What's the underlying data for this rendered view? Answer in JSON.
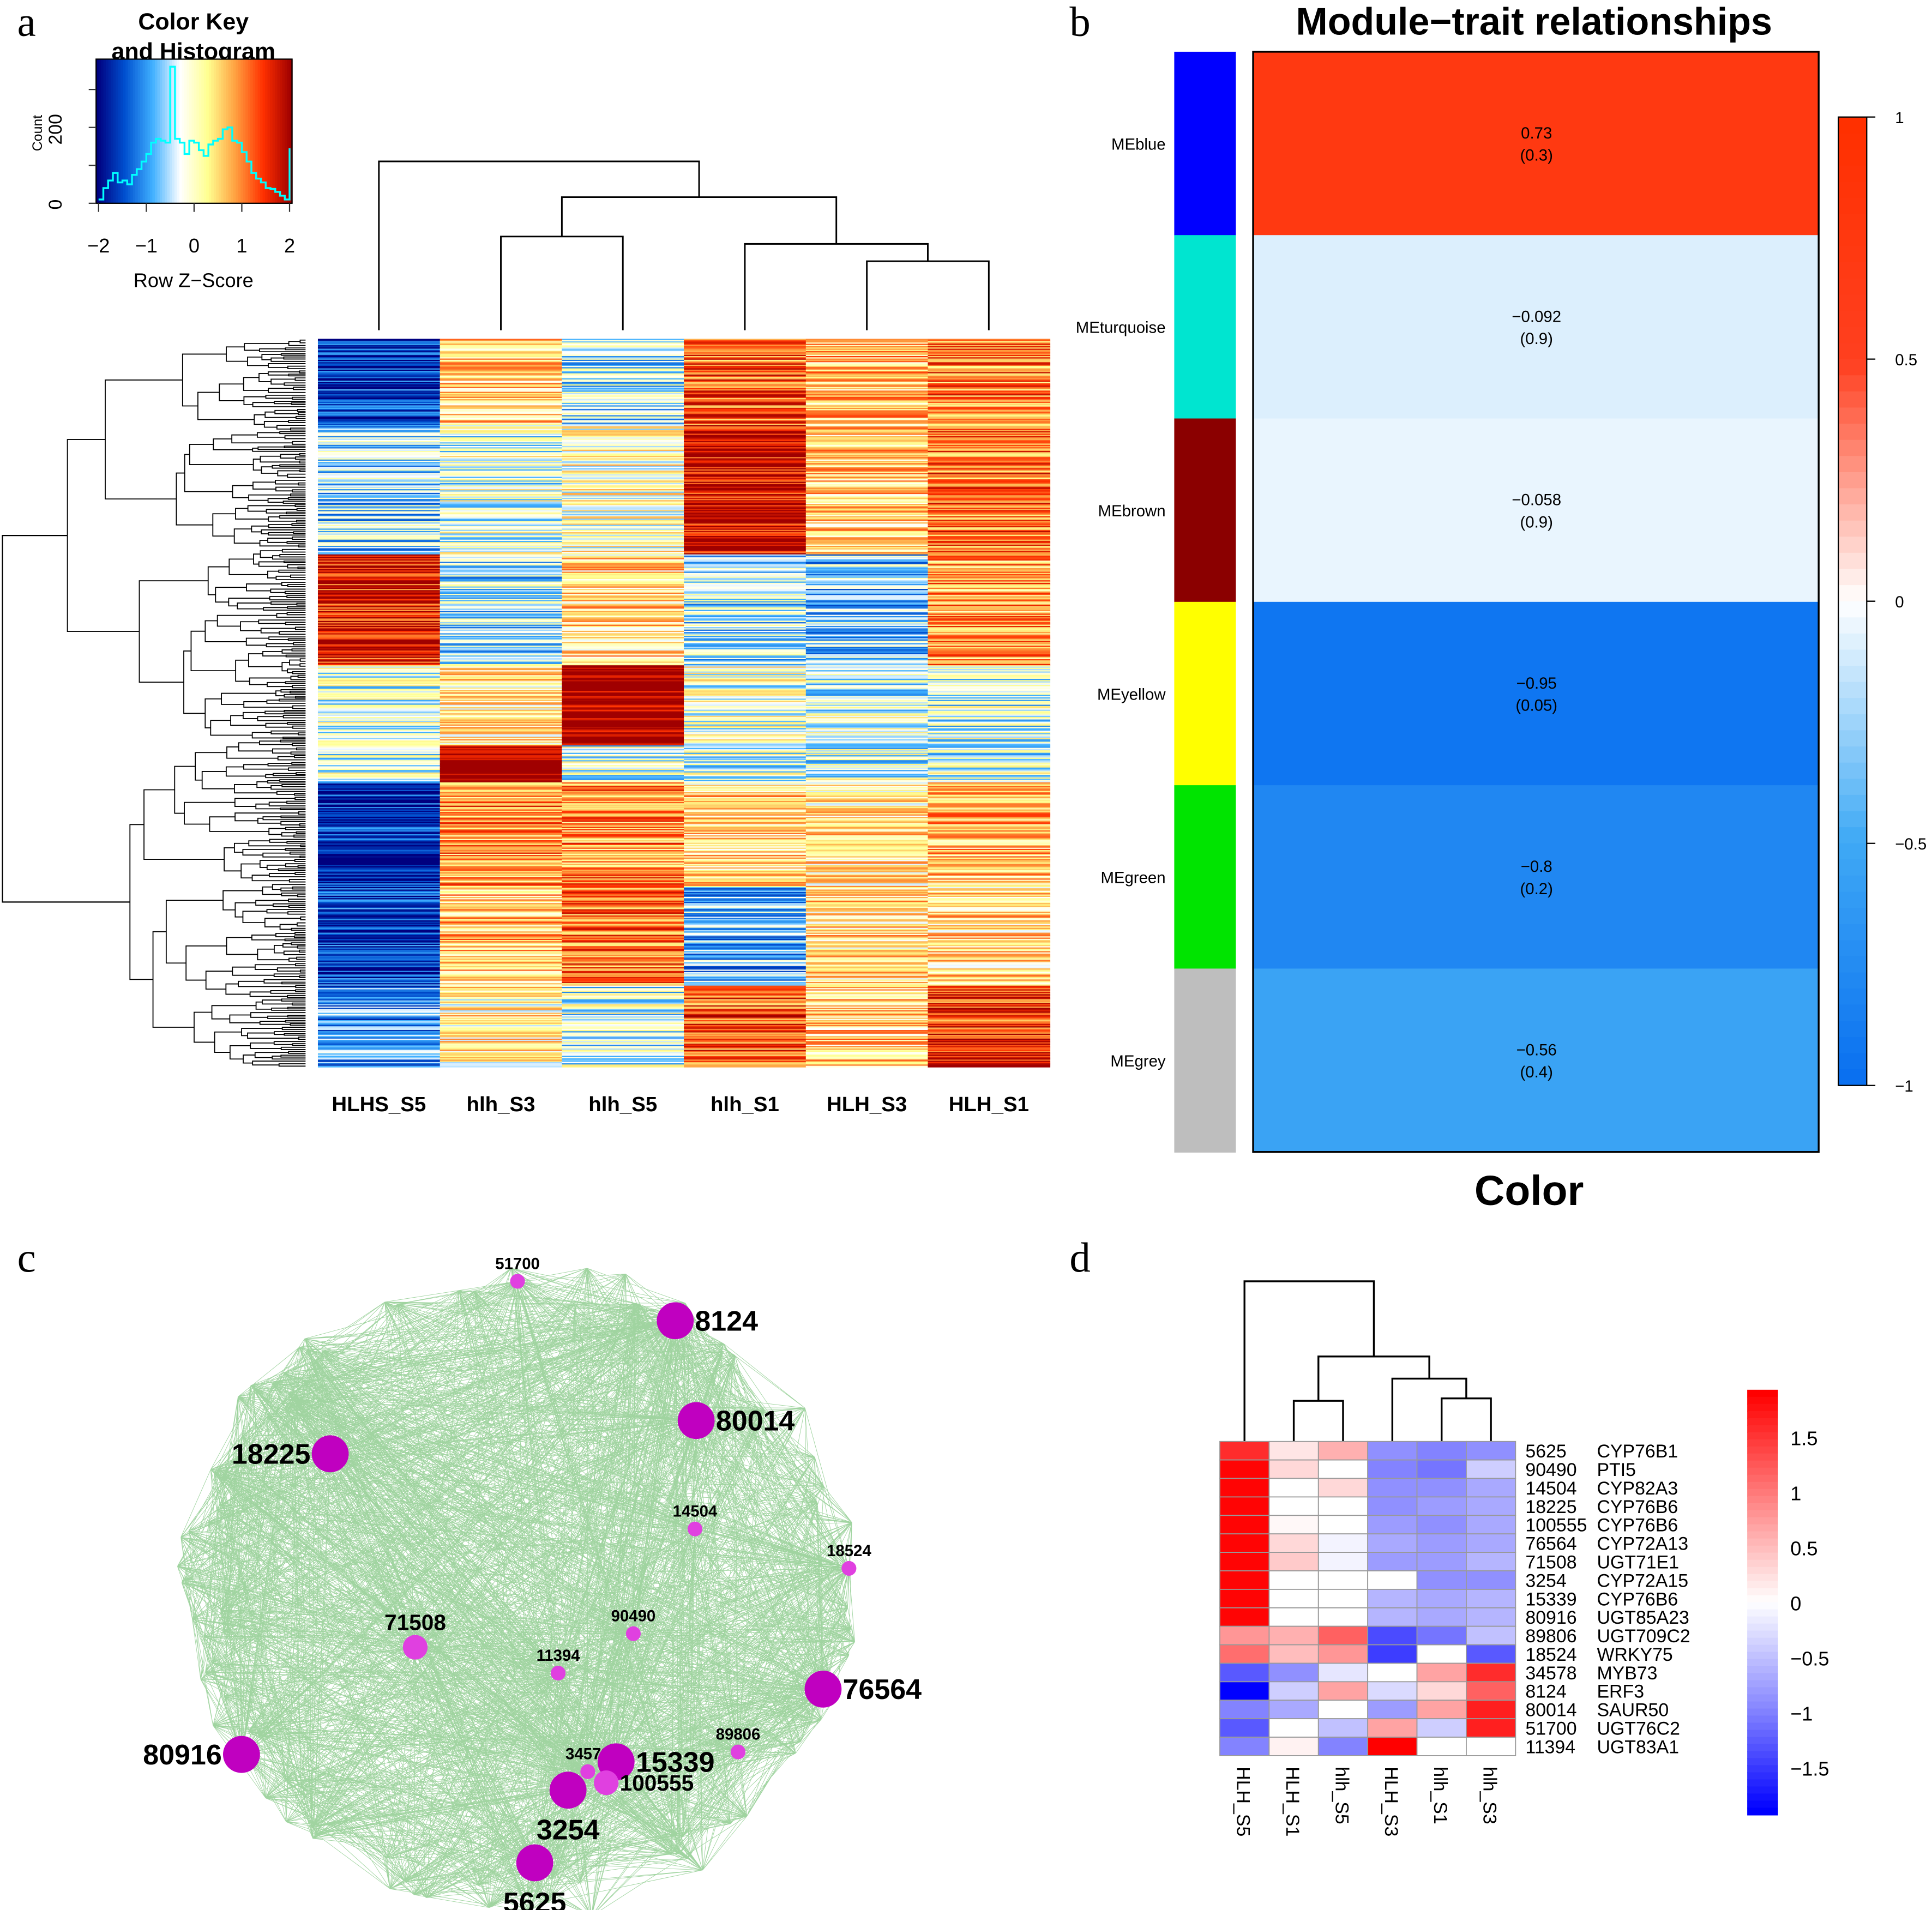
{
  "panels": {
    "a": "a",
    "b": "b",
    "c": "c",
    "d": "d"
  },
  "chart_data": [
    {
      "type": "heatmap",
      "panel": "a",
      "columns": [
        "HLHS_S5",
        "hlh_S3",
        "hlh_S5",
        "hlh_S1",
        "HLH_S3",
        "HLH_S1"
      ],
      "color_key": {
        "title_line1": "Color Key",
        "title_line2": "and Histogram",
        "xlabel": "Row Z−Score",
        "ylabel": "Count",
        "xticks": [
          "−2",
          "−1",
          "0",
          "1",
          "2"
        ],
        "yticks": [
          "0",
          "200"
        ],
        "xlim": [
          -2,
          2
        ],
        "colors": [
          "#00007f",
          "#0050d0",
          "#40b0ff",
          "#ffffff",
          "#ffff90",
          "#ffa040",
          "#ff3000",
          "#a00000"
        ],
        "histogram_color": "#00ffff",
        "histogram_bin_start": -2.0,
        "histogram_bin_width": 0.1,
        "histogram_counts": [
          10,
          40,
          60,
          80,
          55,
          60,
          50,
          75,
          90,
          110,
          130,
          160,
          170,
          165,
          160,
          360,
          170,
          160,
          130,
          165,
          160,
          140,
          125,
          155,
          165,
          170,
          195,
          200,
          165,
          160,
          135,
          110,
          80,
          65,
          55,
          40,
          38,
          30,
          20,
          10,
          145
        ]
      },
      "row_blocks": [
        {
          "rows": 70,
          "means": [
            -1.6,
            0.5,
            -0.5,
            1.2,
            0.6,
            1.0
          ]
        },
        {
          "rows": 105,
          "means": [
            -0.6,
            -0.2,
            0.1,
            1.8,
            0.5,
            1.1
          ]
        },
        {
          "rows": 90,
          "means": [
            1.6,
            -0.5,
            0.4,
            -0.5,
            -0.7,
            0.8
          ]
        },
        {
          "rows": 65,
          "means": [
            -0.3,
            0.3,
            2.2,
            -0.1,
            -0.3,
            -0.3
          ]
        },
        {
          "rows": 30,
          "means": [
            -0.3,
            2.2,
            -0.3,
            -0.3,
            -0.3,
            -0.3
          ]
        },
        {
          "rows": 85,
          "means": [
            -1.7,
            0.9,
            0.9,
            0.4,
            0.3,
            0.6
          ]
        },
        {
          "rows": 80,
          "means": [
            -1.5,
            0.6,
            1.0,
            -0.8,
            0.4,
            0.4
          ]
        },
        {
          "rows": 66,
          "means": [
            -1.0,
            0.2,
            -0.3,
            1.2,
            0.5,
            1.4
          ]
        }
      ]
    },
    {
      "type": "heatmap",
      "panel": "b",
      "title": "Module−trait relationships",
      "xlabel": "Color",
      "modules": [
        {
          "name": "MEblue",
          "color": "#0000ff",
          "r": "0.73",
          "p": "(0.3)",
          "value": 0.73
        },
        {
          "name": "MEturquoise",
          "color": "#00e5d0",
          "r": "−0.092",
          "p": "(0.9)",
          "value": -0.092
        },
        {
          "name": "MEbrown",
          "color": "#8b0000",
          "r": "−0.058",
          "p": "(0.9)",
          "value": -0.058
        },
        {
          "name": "MEyellow",
          "color": "#ffff00",
          "r": "−0.95",
          "p": "(0.05)",
          "value": -0.95
        },
        {
          "name": "MEgreen",
          "color": "#00e400",
          "r": "−0.8",
          "p": "(0.2)",
          "value": -0.8
        },
        {
          "name": "MEgrey",
          "color": "#bebebe",
          "r": "−0.56",
          "p": "(0.4)",
          "value": -0.56
        }
      ],
      "colorbar_ticks": [
        "1",
        "0.5",
        "0",
        "−0.5",
        "−1"
      ],
      "range": [
        -1,
        1
      ]
    },
    {
      "type": "network",
      "panel": "c",
      "edge_color": "#2ca02c",
      "node_color": "#cc00cc",
      "nodes": [
        {
          "id": "51700",
          "size": "small"
        },
        {
          "id": "8124",
          "size": "large"
        },
        {
          "id": "80014",
          "size": "large"
        },
        {
          "id": "18225",
          "size": "large"
        },
        {
          "id": "14504",
          "size": "small"
        },
        {
          "id": "18524",
          "size": "small"
        },
        {
          "id": "71508",
          "size": "medium"
        },
        {
          "id": "90490",
          "size": "small"
        },
        {
          "id": "11394",
          "size": "small"
        },
        {
          "id": "76564",
          "size": "large"
        },
        {
          "id": "80916",
          "size": "large"
        },
        {
          "id": "89806",
          "size": "small"
        },
        {
          "id": "34578",
          "size": "small"
        },
        {
          "id": "15339",
          "size": "large"
        },
        {
          "id": "100555",
          "size": "medium"
        },
        {
          "id": "3254",
          "size": "large"
        },
        {
          "id": "5625",
          "size": "large"
        }
      ]
    },
    {
      "type": "heatmap",
      "panel": "d",
      "columns": [
        "HLH_S5",
        "HLH_S1",
        "hlh_S5",
        "HLH_S3",
        "hlh_S1",
        "hlh_S3"
      ],
      "rows": [
        {
          "id": "5625",
          "gene": "CYP76B1",
          "values": [
            1.6,
            0.2,
            0.6,
            -0.9,
            -1.0,
            -0.9
          ]
        },
        {
          "id": "90490",
          "gene": "PTI5",
          "values": [
            1.9,
            0.3,
            0,
            -1.0,
            -1.1,
            -0.4
          ]
        },
        {
          "id": "14504",
          "gene": "CYP82A3",
          "values": [
            1.9,
            0,
            0.3,
            -0.9,
            -0.9,
            -0.7
          ]
        },
        {
          "id": "18225",
          "gene": "CYP76B6",
          "values": [
            1.9,
            0,
            0,
            -0.9,
            -0.8,
            -0.7
          ]
        },
        {
          "id": "100555",
          "gene": "CYP76B6",
          "values": [
            1.9,
            0.05,
            0,
            -0.8,
            -0.9,
            -0.7
          ]
        },
        {
          "id": "76564",
          "gene": "CYP72A13",
          "values": [
            1.9,
            0.3,
            -0.1,
            -0.7,
            -0.8,
            -0.7
          ]
        },
        {
          "id": "71508",
          "gene": "UGT71E1",
          "values": [
            1.9,
            0.4,
            -0.1,
            -0.8,
            -0.8,
            -0.6
          ]
        },
        {
          "id": "3254",
          "gene": "CYP72A15",
          "values": [
            1.9,
            0,
            0,
            0,
            -0.9,
            -0.9
          ]
        },
        {
          "id": "15339",
          "gene": "CYP76B6",
          "values": [
            1.9,
            0,
            0,
            -0.6,
            -0.7,
            -0.6
          ]
        },
        {
          "id": "80916",
          "gene": "UGT85A23",
          "values": [
            1.9,
            0,
            0,
            -0.6,
            -0.7,
            -0.6
          ]
        },
        {
          "id": "89806",
          "gene": "UGT709C2",
          "values": [
            0.8,
            0.6,
            1.2,
            -1.4,
            -1.1,
            -0.5
          ]
        },
        {
          "id": "18524",
          "gene": "WRKY75",
          "values": [
            1.1,
            0.5,
            0.8,
            -1.5,
            0,
            -1.3
          ]
        },
        {
          "id": "34578",
          "gene": "MYB73",
          "values": [
            -1.3,
            -0.9,
            -0.2,
            0,
            0.7,
            1.6
          ]
        },
        {
          "id": "8124",
          "gene": "ERF3",
          "values": [
            -2.0,
            -0.4,
            0.7,
            -0.3,
            0.3,
            1.2
          ]
        },
        {
          "id": "80014",
          "gene": "SAUR50",
          "values": [
            -1.0,
            -0.7,
            0,
            -0.8,
            0.7,
            1.7
          ]
        },
        {
          "id": "51700",
          "gene": "UGT76C2",
          "values": [
            -1.3,
            0,
            -0.5,
            0.7,
            -0.4,
            1.7
          ]
        },
        {
          "id": "11394",
          "gene": "UGT83A1",
          "values": [
            -1.0,
            0.1,
            -1.0,
            2.0,
            0,
            0
          ]
        }
      ],
      "colorbar_ticks": [
        "1.5",
        "1",
        "0.5",
        "0",
        "−0.5",
        "−1",
        "−1.5"
      ],
      "range": [
        -1.93,
        1.93
      ]
    }
  ]
}
